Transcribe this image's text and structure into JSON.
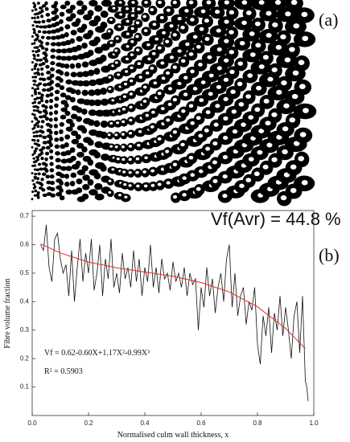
{
  "chart_data": {
    "type": "line",
    "panel_a_label": "(a)",
    "panel_b_label": "(b)",
    "average_label": "Vf(Avr) = 44.8 %",
    "xlabel": "Normalised culm wall thickness, x",
    "ylabel": "Fibre volume fraction",
    "equation": "Vf = 0.62-0.60X+1.17X²-0.99X³",
    "r_squared": "R² = 0.5903",
    "xlim": [
      0,
      1
    ],
    "ylim": [
      0,
      0.72
    ],
    "xticks": [
      {
        "value": 0,
        "label": "0.0"
      },
      0.2,
      0.4,
      0.6,
      0.8,
      {
        "value": 1,
        "label": "1.0"
      }
    ],
    "yticks": [
      0.1,
      0.2,
      0.3,
      0.4,
      0.5,
      0.6,
      0.7
    ],
    "series": [
      {
        "color": "#111111",
        "x": [
          0.03,
          0.04,
          0.05,
          0.06,
          0.07,
          0.08,
          0.09,
          0.1,
          0.11,
          0.12,
          0.13,
          0.14,
          0.15,
          0.16,
          0.17,
          0.18,
          0.19,
          0.2,
          0.21,
          0.22,
          0.23,
          0.24,
          0.25,
          0.26,
          0.27,
          0.28,
          0.29,
          0.3,
          0.31,
          0.32,
          0.33,
          0.34,
          0.35,
          0.36,
          0.37,
          0.38,
          0.39,
          0.4,
          0.41,
          0.42,
          0.43,
          0.44,
          0.45,
          0.46,
          0.47,
          0.48,
          0.49,
          0.5,
          0.51,
          0.52,
          0.53,
          0.54,
          0.55,
          0.56,
          0.57,
          0.58,
          0.59,
          0.6,
          0.61,
          0.62,
          0.63,
          0.64,
          0.65,
          0.66,
          0.67,
          0.68,
          0.69,
          0.7,
          0.71,
          0.72,
          0.73,
          0.74,
          0.75,
          0.76,
          0.77,
          0.78,
          0.79,
          0.8,
          0.81,
          0.82,
          0.83,
          0.84,
          0.85,
          0.86,
          0.87,
          0.88,
          0.89,
          0.9,
          0.91,
          0.92,
          0.93,
          0.94,
          0.95,
          0.96,
          0.97,
          0.975,
          0.98
        ],
        "values": [
          0.6,
          0.58,
          0.67,
          0.52,
          0.47,
          0.62,
          0.64,
          0.55,
          0.5,
          0.53,
          0.42,
          0.58,
          0.4,
          0.52,
          0.62,
          0.47,
          0.57,
          0.5,
          0.62,
          0.44,
          0.5,
          0.6,
          0.42,
          0.55,
          0.48,
          0.62,
          0.45,
          0.5,
          0.43,
          0.57,
          0.48,
          0.52,
          0.45,
          0.58,
          0.47,
          0.55,
          0.42,
          0.52,
          0.47,
          0.6,
          0.45,
          0.52,
          0.43,
          0.55,
          0.48,
          0.5,
          0.44,
          0.54,
          0.47,
          0.5,
          0.45,
          0.52,
          0.42,
          0.5,
          0.46,
          0.48,
          0.3,
          0.45,
          0.38,
          0.52,
          0.42,
          0.48,
          0.36,
          0.45,
          0.5,
          0.4,
          0.55,
          0.6,
          0.38,
          0.5,
          0.35,
          0.42,
          0.45,
          0.32,
          0.4,
          0.37,
          0.45,
          0.25,
          0.18,
          0.35,
          0.28,
          0.38,
          0.22,
          0.36,
          0.3,
          0.42,
          0.28,
          0.38,
          0.3,
          0.2,
          0.35,
          0.4,
          0.22,
          0.42,
          0.12,
          0.1,
          0.05
        ]
      },
      {
        "color": "#e8291c",
        "x": [
          0.03,
          0.1,
          0.2,
          0.3,
          0.4,
          0.5,
          0.6,
          0.7,
          0.8,
          0.9,
          0.97
        ],
        "values": [
          0.603,
          0.571,
          0.539,
          0.519,
          0.504,
          0.489,
          0.467,
          0.434,
          0.382,
          0.306,
          0.235
        ]
      }
    ]
  }
}
